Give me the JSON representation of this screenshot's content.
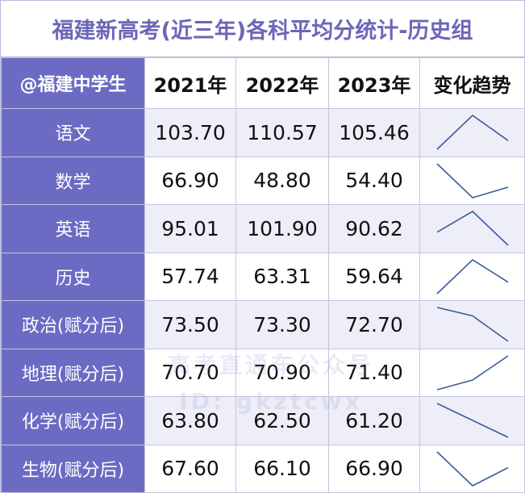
{
  "title": "福建新高考(近三年)各科平均分统计-历史组",
  "header": {
    "corner": "@福建中学生",
    "years": [
      "2021年",
      "2022年",
      "2023年"
    ],
    "trend": "变化趋势"
  },
  "rows": [
    {
      "subject": "语文",
      "values": [
        "103.70",
        "110.57",
        "105.46"
      ]
    },
    {
      "subject": "数学",
      "values": [
        "66.90",
        "48.80",
        "54.40"
      ]
    },
    {
      "subject": "英语",
      "values": [
        "95.01",
        "101.90",
        "90.62"
      ]
    },
    {
      "subject": "历史",
      "values": [
        "57.74",
        "63.31",
        "59.64"
      ]
    },
    {
      "subject": "政治(赋分后)",
      "values": [
        "73.50",
        "73.30",
        "72.70"
      ]
    },
    {
      "subject": "地理(赋分后)",
      "values": [
        "70.70",
        "70.90",
        "71.40"
      ]
    },
    {
      "subject": "化学(赋分后)",
      "values": [
        "63.80",
        "62.50",
        "61.20"
      ]
    },
    {
      "subject": "生物(赋分后)",
      "values": [
        "67.60",
        "66.10",
        "66.90"
      ]
    }
  ],
  "watermark": {
    "line1": "高考直通车公众号",
    "line2": "ID: gkztcwx"
  },
  "colors": {
    "accent": "#6b6bc4",
    "title": "#6b67b8",
    "sparkline": "#3d5a9e"
  }
}
